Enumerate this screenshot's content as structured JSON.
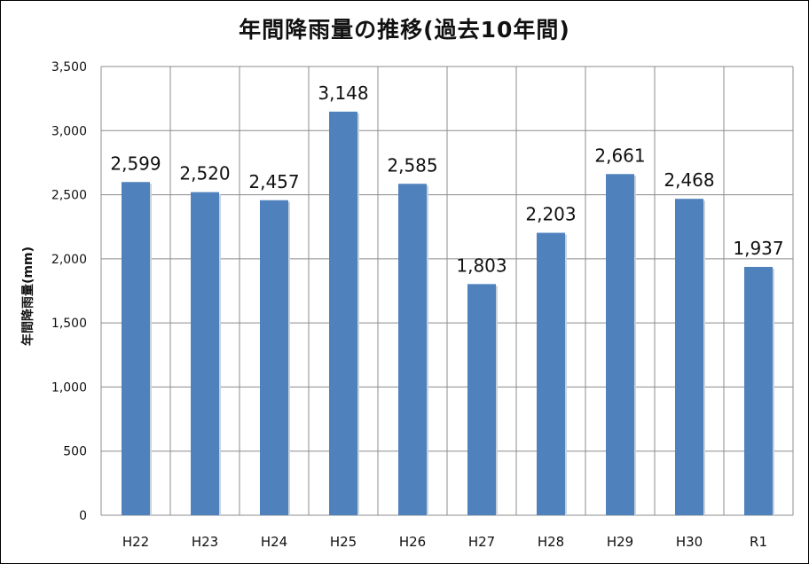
{
  "chart_data": {
    "type": "bar",
    "title": "年間降雨量の推移(過去10年間)",
    "xlabel": "",
    "ylabel": "年間降雨量(mm)",
    "categories": [
      "H22",
      "H23",
      "H24",
      "H25",
      "H26",
      "H27",
      "H28",
      "H29",
      "H30",
      "R1"
    ],
    "values": [
      2599,
      2520,
      2457,
      3148,
      2585,
      1803,
      2203,
      2661,
      2468,
      1937
    ],
    "data_labels": [
      "2,599",
      "2,520",
      "2,457",
      "3,148",
      "2,585",
      "1,803",
      "2,203",
      "2,661",
      "2,468",
      "1,937"
    ],
    "ylim": [
      0,
      3500
    ],
    "yticks": [
      0,
      500,
      1000,
      1500,
      2000,
      2500,
      3000,
      3500
    ],
    "ytick_labels": [
      "0",
      "500",
      "1,000",
      "1,500",
      "2,000",
      "2,500",
      "3,000",
      "3,500"
    ],
    "grid": true,
    "legend": "none",
    "colors": {
      "bar": "#4f81bd",
      "grid": "#8c8c8c",
      "text": "#111111"
    }
  }
}
